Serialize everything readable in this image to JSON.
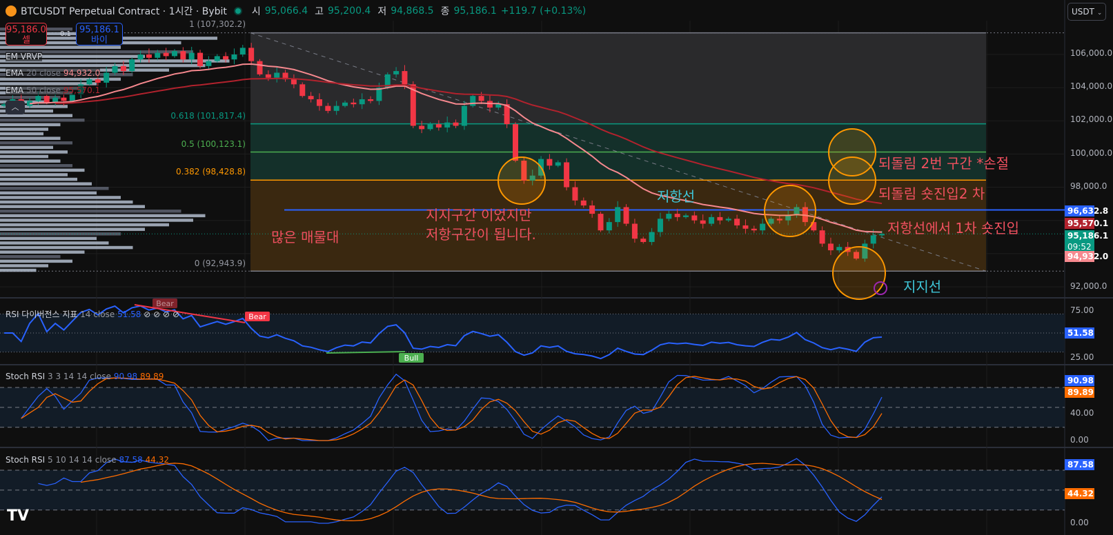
{
  "header": {
    "symbol": "BTCUSDT Perpetual Contract · 1시간 · Bybit",
    "open_label": "시",
    "open": "95,066.4",
    "high_label": "고",
    "high": "95,200.4",
    "low_label": "저",
    "low": "94,868.5",
    "close_label": "종",
    "close": "95,186.1",
    "change": "+119.7 (+0.13%)"
  },
  "trade": {
    "sell_price": "95,186.0",
    "sell_label": "셀",
    "spread": "0.1",
    "buy_price": "95,186.1",
    "buy_label": "바이"
  },
  "legend": {
    "vrvp": "EM VRVP",
    "ema20_name": "EMA",
    "ema20_params": "20 close",
    "ema20_value": "94,932.0",
    "ema50_name": "EMA",
    "ema50_params": "50 close",
    "ema50_value": "95,570.1",
    "collapse": "︿"
  },
  "currency": "USDT",
  "colors": {
    "up": "#089981",
    "down": "#f23645",
    "ema20": "#f7898f",
    "ema50": "#b2222d",
    "rsi": "#2962ff",
    "stoch_k": "#2962ff",
    "stoch_d": "#ff6d00",
    "fib_0618": "#089981",
    "fib_05": "#4caf50",
    "fib_0382": "#ff9800",
    "resistance": "#2962ff",
    "annotation": "#f0505f",
    "annotation_alt": "#3fc6d8"
  },
  "fib": {
    "top": "1 (107,302.2)",
    "l0618": "0.618 (101,817.4)",
    "l05": "0.5 (100,123.1)",
    "l0382": "0.382 (98,428.8)",
    "l0": "0 (92,943.9)"
  },
  "annotations": {
    "volume_zone": "많은 매물대",
    "support_to_resistance_1": "지지구간 이었지만",
    "support_to_resistance_2": "저항구간이 됩니다.",
    "resistance": "저항선",
    "retrace_2_stop": "되돌림 2번 구간 *손절",
    "retrace_short_2": "되돌림 숏진입2 차",
    "short_1": "저항선에서 1차 숏진입",
    "support": "지지선"
  },
  "price_axis": {
    "labels": [
      "106,000.0",
      "104,000.0",
      "102,000.0",
      "100,000.0",
      "98,000.0",
      "92,000.0"
    ],
    "tag_resistance": "96,632.8",
    "tag_ema50": "95,570.1",
    "tag_last": "95,186.1",
    "tag_countdown": "09:52",
    "tag_ema20": "94,932.0"
  },
  "rsi": {
    "name": "RSI 다이버전스 지표",
    "params": "14 close",
    "value": "51.58",
    "icons": "⊘ ⊘ ⊘ ⊘",
    "bear": "Bear",
    "bear_faded": "Bear",
    "bull": "Bull",
    "axis": [
      "75.00",
      "25.00"
    ],
    "tag": "51.58"
  },
  "stoch1": {
    "name": "Stoch RSI",
    "params": "3 3 14 14 close",
    "k": "90.98",
    "d": "89.89",
    "axis": [
      "40.00",
      "0.00"
    ]
  },
  "stoch2": {
    "name": "Stoch RSI",
    "params": "5 10 14 14 close",
    "k": "87.58",
    "d": "44.32",
    "axis": [
      "0.00"
    ]
  },
  "chart_data": {
    "type": "candlestick",
    "timeframe": "1시간",
    "ylim": [
      91500,
      107500
    ],
    "closes": [
      103000,
      103300,
      102900,
      103200,
      103500,
      103100,
      103400,
      103200,
      103600,
      104200,
      104500,
      104300,
      104900,
      105300,
      105000,
      105700,
      106000,
      105800,
      106100,
      105900,
      106200,
      105700,
      106100,
      105300,
      105600,
      105900,
      105700,
      106000,
      106400,
      105600,
      104800,
      104600,
      104900,
      104500,
      104200,
      103500,
      103300,
      102900,
      102600,
      102900,
      103100,
      103000,
      103300,
      103200,
      104000,
      104800,
      105000,
      104200,
      101700,
      101500,
      101800,
      101600,
      101900,
      101700,
      102900,
      103500,
      103200,
      102800,
      103000,
      101800,
      99600,
      98400,
      98700,
      99700,
      99300,
      99500,
      98000,
      97200,
      96900,
      96400,
      95400,
      95900,
      96800,
      95800,
      94900,
      94700,
      95300,
      96100,
      96400,
      96200,
      96300,
      96000,
      95800,
      96200,
      96000,
      96100,
      95700,
      95500,
      95400,
      95800,
      96100,
      96000,
      96300,
      96800,
      95900,
      95400,
      94600,
      94200,
      94400,
      94100,
      93700,
      94600,
      95100,
      95186
    ],
    "fib_levels": {
      "1": 107302.2,
      "0.618": 101817.4,
      "0.5": 100123.1,
      "0.382": 98428.8,
      "0": 92943.9
    },
    "resistance_line": 96632.8,
    "volume_profile": [
      0.3,
      0.45,
      0.9,
      0.75,
      0.5,
      0.8,
      0.6,
      0.95,
      0.85,
      0.7,
      0.55,
      0.5,
      0.4,
      0.35,
      0.3,
      0.25,
      0.2,
      0.28,
      0.22,
      0.3,
      0.35,
      0.25,
      0.2,
      0.18,
      0.25,
      0.3,
      0.22,
      0.28,
      0.2,
      0.25,
      0.3,
      0.35,
      0.28,
      0.32,
      0.38,
      0.45,
      0.4,
      0.5,
      0.55,
      0.6,
      0.75,
      0.85,
      0.8,
      0.7,
      0.6,
      0.5,
      0.4,
      0.45,
      0.55,
      0.35,
      0.25,
      0.3,
      0.2,
      0.15
    ]
  }
}
